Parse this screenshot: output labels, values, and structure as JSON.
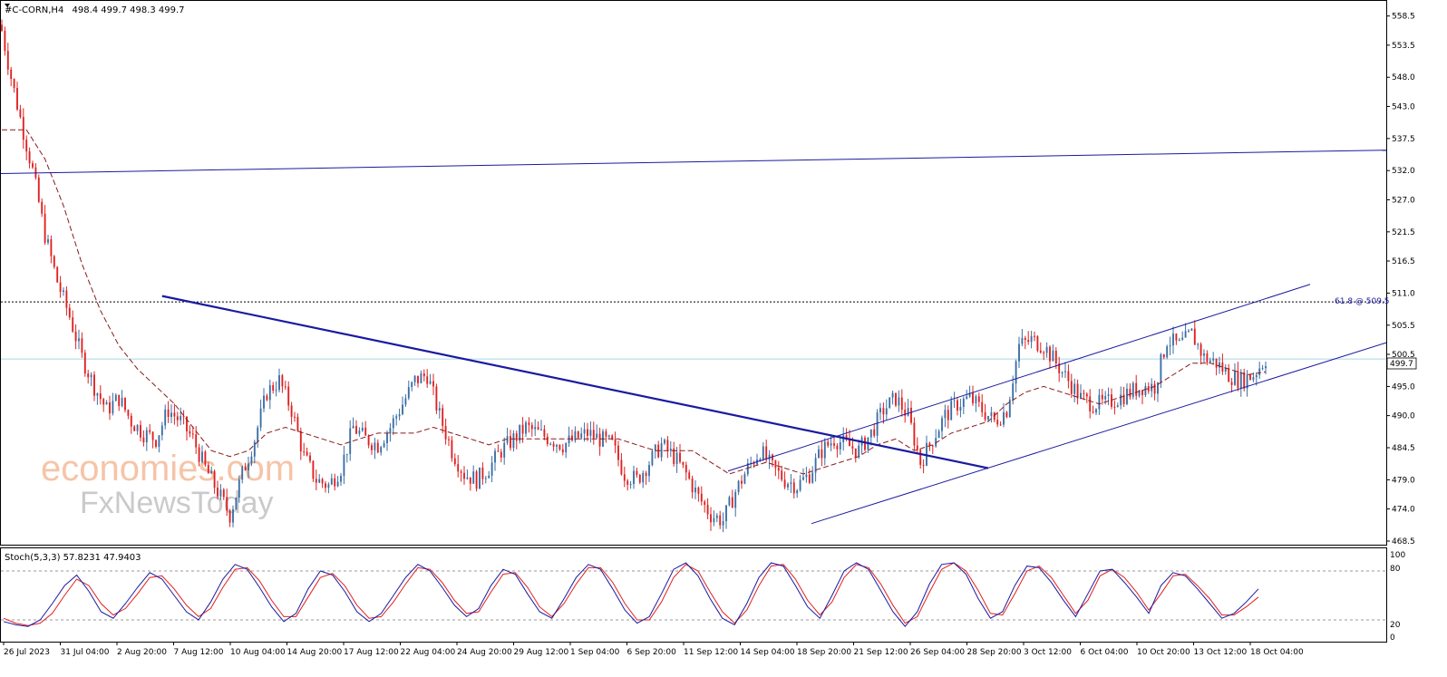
{
  "header": {
    "title": "#C-CORN,H4",
    "ohlc": "498.4 499.7 498.3 499.7"
  },
  "indicator": {
    "label": "Stoch(5,3,3) 57.8231 47.9403",
    "levels": [
      "100",
      "80",
      "20",
      "0"
    ]
  },
  "fib_label": "61.8 @ 509.5",
  "price_tag": "499.7",
  "watermark": {
    "line1": "economies.com",
    "line2": "FxNewsToday"
  },
  "colors": {
    "up": "#3a6ea5",
    "down": "#e02020",
    "ma": "#8b1a1a",
    "trend": "#1a1aa0",
    "stoch_main": "#1a1aa0",
    "stoch_signal": "#e02020",
    "price_line": "#a8d8e8"
  },
  "chart_data": {
    "type": "candlestick",
    "symbol": "#C-CORN",
    "timeframe": "H4",
    "ylim": [
      468.5,
      560.0
    ],
    "y_ticks": [
      "558.5",
      "553.5",
      "548.0",
      "543.0",
      "537.5",
      "532.0",
      "527.0",
      "521.5",
      "516.5",
      "511.0",
      "505.5",
      "500.5",
      "495.0",
      "490.0",
      "484.5",
      "479.0",
      "474.0",
      "468.5"
    ],
    "x_ticks": [
      "26 Jul 2023",
      "31 Jul 04:00",
      "2 Aug 20:00",
      "7 Aug 12:00",
      "10 Aug 04:00",
      "14 Aug 20:00",
      "17 Aug 12:00",
      "22 Aug 04:00",
      "24 Aug 20:00",
      "29 Aug 12:00",
      "1 Sep 04:00",
      "6 Sep 20:00",
      "11 Sep 12:00",
      "14 Sep 04:00",
      "18 Sep 20:00",
      "21 Sep 12:00",
      "26 Sep 04:00",
      "28 Sep 20:00",
      "3 Oct 12:00",
      "6 Oct 04:00",
      "10 Oct 20:00",
      "13 Oct 12:00",
      "18 Oct 04:00"
    ],
    "close_path": [
      [
        0,
        556
      ],
      [
        3,
        548
      ],
      [
        6,
        541
      ],
      [
        10,
        532
      ],
      [
        14,
        521
      ],
      [
        18,
        513
      ],
      [
        22,
        507
      ],
      [
        26,
        500
      ],
      [
        30,
        495
      ],
      [
        34,
        491
      ],
      [
        38,
        493
      ],
      [
        42,
        489
      ],
      [
        46,
        487
      ],
      [
        50,
        486
      ],
      [
        54,
        491
      ],
      [
        58,
        489
      ],
      [
        62,
        486
      ],
      [
        66,
        481
      ],
      [
        70,
        477
      ],
      [
        74,
        473
      ],
      [
        78,
        480
      ],
      [
        82,
        486
      ],
      [
        86,
        494
      ],
      [
        90,
        496
      ],
      [
        94,
        491
      ],
      [
        98,
        483
      ],
      [
        102,
        479
      ],
      [
        106,
        478
      ],
      [
        110,
        481
      ],
      [
        114,
        488
      ],
      [
        118,
        486
      ],
      [
        122,
        485
      ],
      [
        126,
        488
      ],
      [
        130,
        492
      ],
      [
        134,
        496
      ],
      [
        138,
        497
      ],
      [
        142,
        490
      ],
      [
        146,
        484
      ],
      [
        150,
        480
      ],
      [
        154,
        479
      ],
      [
        158,
        481
      ],
      [
        162,
        484
      ],
      [
        166,
        486
      ],
      [
        170,
        488
      ],
      [
        174,
        487
      ],
      [
        178,
        486
      ],
      [
        182,
        485
      ],
      [
        186,
        486
      ],
      [
        190,
        487
      ],
      [
        194,
        486
      ],
      [
        198,
        485
      ],
      [
        202,
        480
      ],
      [
        206,
        479
      ],
      [
        210,
        482
      ],
      [
        214,
        485
      ],
      [
        218,
        483
      ],
      [
        222,
        480
      ],
      [
        226,
        476
      ],
      [
        230,
        473
      ],
      [
        234,
        472
      ],
      [
        238,
        477
      ],
      [
        242,
        481
      ],
      [
        246,
        484
      ],
      [
        250,
        481
      ],
      [
        254,
        479
      ],
      [
        258,
        478
      ],
      [
        262,
        480
      ],
      [
        266,
        484
      ],
      [
        270,
        486
      ],
      [
        274,
        485
      ],
      [
        278,
        484
      ],
      [
        282,
        487
      ],
      [
        286,
        491
      ],
      [
        290,
        493
      ],
      [
        294,
        490
      ],
      [
        298,
        482
      ],
      [
        302,
        486
      ],
      [
        306,
        490
      ],
      [
        310,
        492
      ],
      [
        314,
        493
      ],
      [
        318,
        491
      ],
      [
        322,
        489
      ],
      [
        326,
        491
      ],
      [
        330,
        502
      ],
      [
        334,
        503
      ],
      [
        338,
        502
      ],
      [
        342,
        499
      ],
      [
        346,
        496
      ],
      [
        350,
        493
      ],
      [
        354,
        492
      ],
      [
        358,
        492
      ],
      [
        362,
        493
      ],
      [
        366,
        494
      ],
      [
        370,
        495
      ],
      [
        374,
        495
      ],
      [
        378,
        503
      ],
      [
        382,
        502
      ],
      [
        386,
        504
      ],
      [
        390,
        500
      ],
      [
        394,
        499
      ],
      [
        398,
        497
      ],
      [
        402,
        496
      ],
      [
        406,
        497
      ],
      [
        410,
        499.7
      ]
    ],
    "ma_path": [
      [
        0,
        539
      ],
      [
        8,
        539
      ],
      [
        14,
        534
      ],
      [
        20,
        526
      ],
      [
        26,
        516
      ],
      [
        32,
        508
      ],
      [
        38,
        502
      ],
      [
        44,
        498
      ],
      [
        50,
        495
      ],
      [
        56,
        492
      ],
      [
        62,
        488
      ],
      [
        68,
        484
      ],
      [
        74,
        483
      ],
      [
        80,
        484
      ],
      [
        86,
        487
      ],
      [
        92,
        488
      ],
      [
        98,
        487
      ],
      [
        104,
        486
      ],
      [
        110,
        485
      ],
      [
        116,
        486
      ],
      [
        122,
        487
      ],
      [
        128,
        487
      ],
      [
        134,
        487
      ],
      [
        140,
        488
      ],
      [
        146,
        487
      ],
      [
        152,
        486
      ],
      [
        158,
        485
      ],
      [
        164,
        486
      ],
      [
        170,
        486
      ],
      [
        176,
        486
      ],
      [
        182,
        486
      ],
      [
        188,
        486
      ],
      [
        194,
        486
      ],
      [
        200,
        486
      ],
      [
        206,
        485
      ],
      [
        212,
        484
      ],
      [
        218,
        484
      ],
      [
        224,
        484
      ],
      [
        230,
        482
      ],
      [
        236,
        480
      ],
      [
        242,
        481
      ],
      [
        248,
        482
      ],
      [
        254,
        481
      ],
      [
        260,
        480
      ],
      [
        266,
        481
      ],
      [
        272,
        482
      ],
      [
        278,
        483
      ],
      [
        284,
        485
      ],
      [
        290,
        486
      ],
      [
        296,
        484
      ],
      [
        302,
        485
      ],
      [
        308,
        487
      ],
      [
        314,
        488
      ],
      [
        320,
        489
      ],
      [
        326,
        492
      ],
      [
        332,
        494
      ],
      [
        338,
        495
      ],
      [
        344,
        494
      ],
      [
        350,
        493
      ],
      [
        356,
        492
      ],
      [
        362,
        493
      ],
      [
        368,
        494
      ],
      [
        374,
        495
      ],
      [
        380,
        497
      ],
      [
        386,
        499
      ],
      [
        392,
        499
      ],
      [
        398,
        498
      ],
      [
        404,
        497
      ],
      [
        410,
        497.5
      ]
    ],
    "stoch_k": [
      18,
      14,
      12,
      20,
      40,
      62,
      75,
      55,
      30,
      22,
      40,
      60,
      78,
      70,
      50,
      30,
      20,
      42,
      70,
      88,
      82,
      60,
      36,
      18,
      28,
      58,
      80,
      75,
      55,
      30,
      18,
      28,
      50,
      72,
      88,
      80,
      60,
      38,
      24,
      34,
      62,
      82,
      76,
      52,
      30,
      22,
      46,
      72,
      88,
      82,
      58,
      32,
      16,
      24,
      52,
      82,
      90,
      74,
      46,
      22,
      14,
      40,
      72,
      90,
      86,
      62,
      36,
      22,
      50,
      80,
      90,
      82,
      56,
      30,
      12,
      30,
      64,
      88,
      90,
      76,
      46,
      22,
      30,
      62,
      86,
      84,
      66,
      44,
      24,
      52,
      80,
      82,
      66,
      48,
      28,
      62,
      78,
      74,
      58,
      40,
      22,
      28,
      42,
      58
    ],
    "stoch_d": [
      22,
      16,
      13,
      16,
      28,
      50,
      70,
      62,
      40,
      26,
      34,
      52,
      72,
      74,
      58,
      38,
      24,
      34,
      60,
      82,
      84,
      68,
      44,
      24,
      24,
      48,
      72,
      77,
      62,
      38,
      22,
      24,
      42,
      64,
      84,
      82,
      66,
      44,
      28,
      30,
      54,
      76,
      78,
      60,
      36,
      24,
      40,
      64,
      84,
      84,
      66,
      40,
      20,
      20,
      42,
      72,
      88,
      80,
      54,
      30,
      16,
      32,
      62,
      86,
      88,
      70,
      44,
      26,
      42,
      72,
      88,
      84,
      64,
      38,
      16,
      24,
      54,
      82,
      90,
      80,
      56,
      28,
      26,
      52,
      80,
      86,
      72,
      50,
      28,
      44,
      74,
      82,
      72,
      54,
      32,
      52,
      74,
      76,
      62,
      46,
      26,
      26,
      36,
      48
    ]
  }
}
